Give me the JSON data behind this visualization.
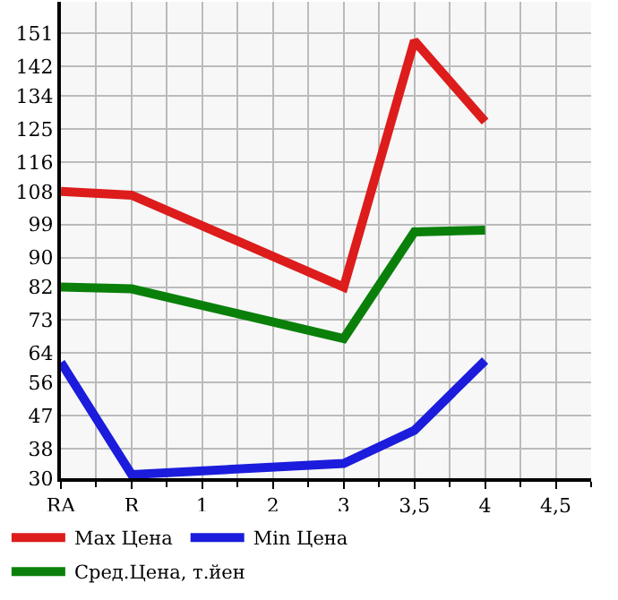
{
  "chart_data": {
    "type": "line",
    "categories": [
      "RA",
      "R",
      "1",
      "2",
      "3",
      "3,5",
      "4",
      "4,5"
    ],
    "series": [
      {
        "name": "Max Цена",
        "color": "#dd1c1c",
        "values": [
          108,
          107,
          null,
          null,
          82,
          149,
          127,
          null
        ]
      },
      {
        "name": "Min Цена",
        "color": "#1c1cdd",
        "values": [
          61.5,
          31,
          null,
          null,
          34,
          43,
          62,
          null
        ]
      },
      {
        "name": "Сред.Цена, т.йен",
        "color": "#0a800a",
        "values": [
          82,
          81.5,
          null,
          null,
          68,
          97,
          97.5,
          null
        ]
      }
    ],
    "ylim": [
      30,
      159.6
    ],
    "yticks": [
      30,
      38,
      47,
      56,
      64,
      73,
      82,
      90,
      99,
      108,
      116,
      125,
      134,
      142,
      151
    ],
    "grid": true,
    "legend": "bottom",
    "marker": "none",
    "line_style": "solid"
  }
}
